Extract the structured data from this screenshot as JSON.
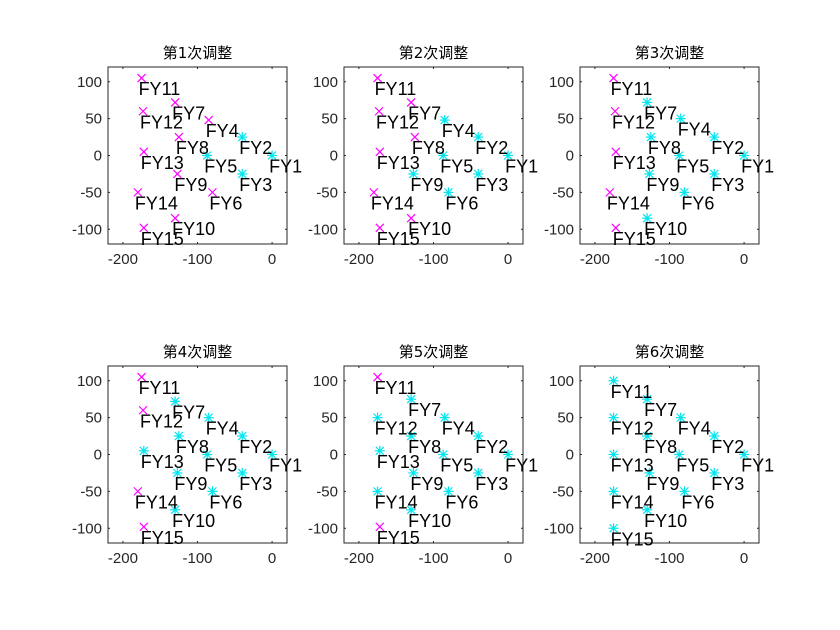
{
  "chart_data": {
    "type": "scatter",
    "xlim": [
      -220,
      20
    ],
    "ylim": [
      -120,
      120
    ],
    "xticks": [
      -200,
      -100,
      0
    ],
    "yticks": [
      -100,
      -50,
      0,
      50,
      100
    ],
    "grid": false,
    "colors": {
      "unadjusted": "#ff00ff",
      "adjusted": "#00e5ee"
    },
    "markers": {
      "unadjusted": "x-mark",
      "adjusted": "asterisk"
    },
    "points": [
      {
        "label": "FY1",
        "x": 0,
        "y": 0
      },
      {
        "label": "FY2",
        "x": -40,
        "y": 25
      },
      {
        "label": "FY3",
        "x": -40,
        "y": -25
      },
      {
        "label": "FY4",
        "x": -85,
        "y": 48
      },
      {
        "label": "FY5",
        "x": -87,
        "y": 0
      },
      {
        "label": "FY6",
        "x": -80,
        "y": -50
      },
      {
        "label": "FY7",
        "x": -130,
        "y": 72
      },
      {
        "label": "FY8",
        "x": -125,
        "y": 25
      },
      {
        "label": "FY9",
        "x": -127,
        "y": -25
      },
      {
        "label": "FY10",
        "x": -130,
        "y": -85
      },
      {
        "label": "FY11",
        "x": -175,
        "y": 105
      },
      {
        "label": "FY12",
        "x": -173,
        "y": 60
      },
      {
        "label": "FY13",
        "x": -172,
        "y": 5
      },
      {
        "label": "FY14",
        "x": -180,
        "y": -50
      },
      {
        "label": "FY15",
        "x": -172,
        "y": -98
      }
    ],
    "panels": [
      {
        "title": "第1次调整",
        "adjusted": [
          "FY1",
          "FY2",
          "FY3",
          "FY5"
        ],
        "positions": {}
      },
      {
        "title": "第2次调整",
        "adjusted": [
          "FY1",
          "FY2",
          "FY3",
          "FY4",
          "FY5",
          "FY6",
          "FY9"
        ],
        "positions": {}
      },
      {
        "title": "第3次调整",
        "adjusted": [
          "FY1",
          "FY2",
          "FY3",
          "FY4",
          "FY5",
          "FY6",
          "FY7",
          "FY8",
          "FY9",
          "FY10"
        ],
        "positions": {
          "FY4": [
            -85,
            50
          ]
        }
      },
      {
        "title": "第4次调整",
        "adjusted": [
          "FY1",
          "FY2",
          "FY3",
          "FY4",
          "FY5",
          "FY6",
          "FY7",
          "FY8",
          "FY9",
          "FY10",
          "FY13"
        ],
        "positions": {
          "FY4": [
            -85,
            50
          ],
          "FY7": [
            -130,
            72
          ],
          "FY10": [
            -130,
            -75
          ]
        }
      },
      {
        "title": "第5次调整",
        "adjusted": [
          "FY1",
          "FY2",
          "FY3",
          "FY4",
          "FY5",
          "FY6",
          "FY7",
          "FY8",
          "FY9",
          "FY10",
          "FY12",
          "FY13",
          "FY14"
        ],
        "positions": {
          "FY4": [
            -85,
            50
          ],
          "FY7": [
            -130,
            75
          ],
          "FY8": [
            -130,
            25
          ],
          "FY9": [
            -127,
            -25
          ],
          "FY10": [
            -130,
            -75
          ],
          "FY12": [
            -175,
            50
          ],
          "FY14": [
            -175,
            -50
          ]
        }
      },
      {
        "title": "第6次调整",
        "adjusted": [
          "FY1",
          "FY2",
          "FY3",
          "FY4",
          "FY5",
          "FY6",
          "FY7",
          "FY8",
          "FY9",
          "FY10",
          "FY11",
          "FY12",
          "FY13",
          "FY14",
          "FY15"
        ],
        "positions": {
          "FY4": [
            -85,
            50
          ],
          "FY7": [
            -130,
            75
          ],
          "FY8": [
            -130,
            25
          ],
          "FY9": [
            -127,
            -25
          ],
          "FY10": [
            -130,
            -75
          ],
          "FY11": [
            -175,
            100
          ],
          "FY12": [
            -175,
            50
          ],
          "FY13": [
            -175,
            0
          ],
          "FY14": [
            -175,
            -50
          ],
          "FY15": [
            -175,
            -100
          ]
        }
      }
    ]
  }
}
